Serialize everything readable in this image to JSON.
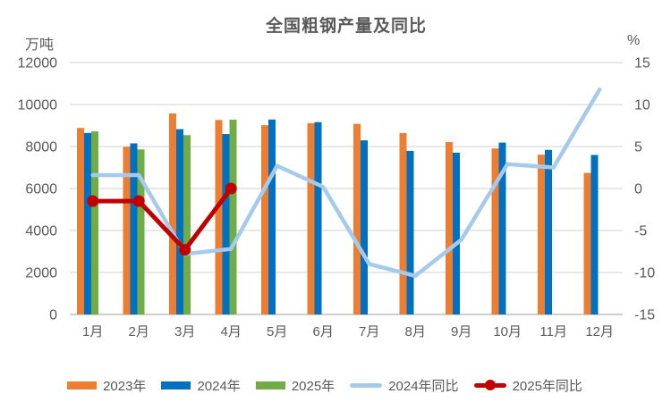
{
  "chart_data": {
    "type": "bar",
    "subtype": "combo-bar-line",
    "title": "全国粗钢产量及同比",
    "categories": [
      "1月",
      "2月",
      "3月",
      "4月",
      "5月",
      "6月",
      "7月",
      "8月",
      "9月",
      "10月",
      "11月",
      "12月"
    ],
    "bar_series": [
      {
        "name": "2023年",
        "color": "#ED7D31",
        "values": [
          8884,
          7986,
          9573,
          9264,
          9012,
          9111,
          9080,
          8641,
          8211,
          7909,
          7610,
          6744
        ]
      },
      {
        "name": "2024年",
        "color": "#0070C0",
        "values": [
          8646,
          8150,
          8827,
          8594,
          9286,
          9161,
          8294,
          7792,
          7707,
          8188,
          7840,
          7597
        ]
      },
      {
        "name": "2025年",
        "color": "#70AD47",
        "values": [
          8720,
          7860,
          8540,
          9280,
          null,
          null,
          null,
          null,
          null,
          null,
          null,
          null
        ]
      }
    ],
    "line_series": [
      {
        "name": "2024年同比",
        "color": "#A6CAEC",
        "marker": false,
        "axis": "right",
        "values": [
          1.6,
          1.6,
          -7.8,
          -7.2,
          2.7,
          0.2,
          -9.0,
          -10.4,
          -6.1,
          2.9,
          2.5,
          11.8
        ]
      },
      {
        "name": "2025年同比",
        "color": "#C00000",
        "marker": true,
        "axis": "right",
        "values": [
          -1.5,
          -1.5,
          -7.3,
          0.0,
          null,
          null,
          null,
          null,
          null,
          null,
          null,
          null
        ]
      }
    ],
    "left_axis": {
      "title": "万吨",
      "min": 0,
      "max": 12000,
      "step": 2000,
      "ticks": [
        "12000",
        "10000",
        "8000",
        "6000",
        "4000",
        "2000",
        "0"
      ]
    },
    "right_axis": {
      "title": "%",
      "min": -15,
      "max": 15,
      "step": 5,
      "ticks": [
        "15",
        "10",
        "5",
        "0",
        "-5",
        "-10",
        "-15"
      ]
    },
    "legend_position": "bottom",
    "grid": true,
    "style_colors": {
      "gridline": "#D9D9D9",
      "axis_line": "#BFBFBF",
      "text": "#595959"
    }
  }
}
